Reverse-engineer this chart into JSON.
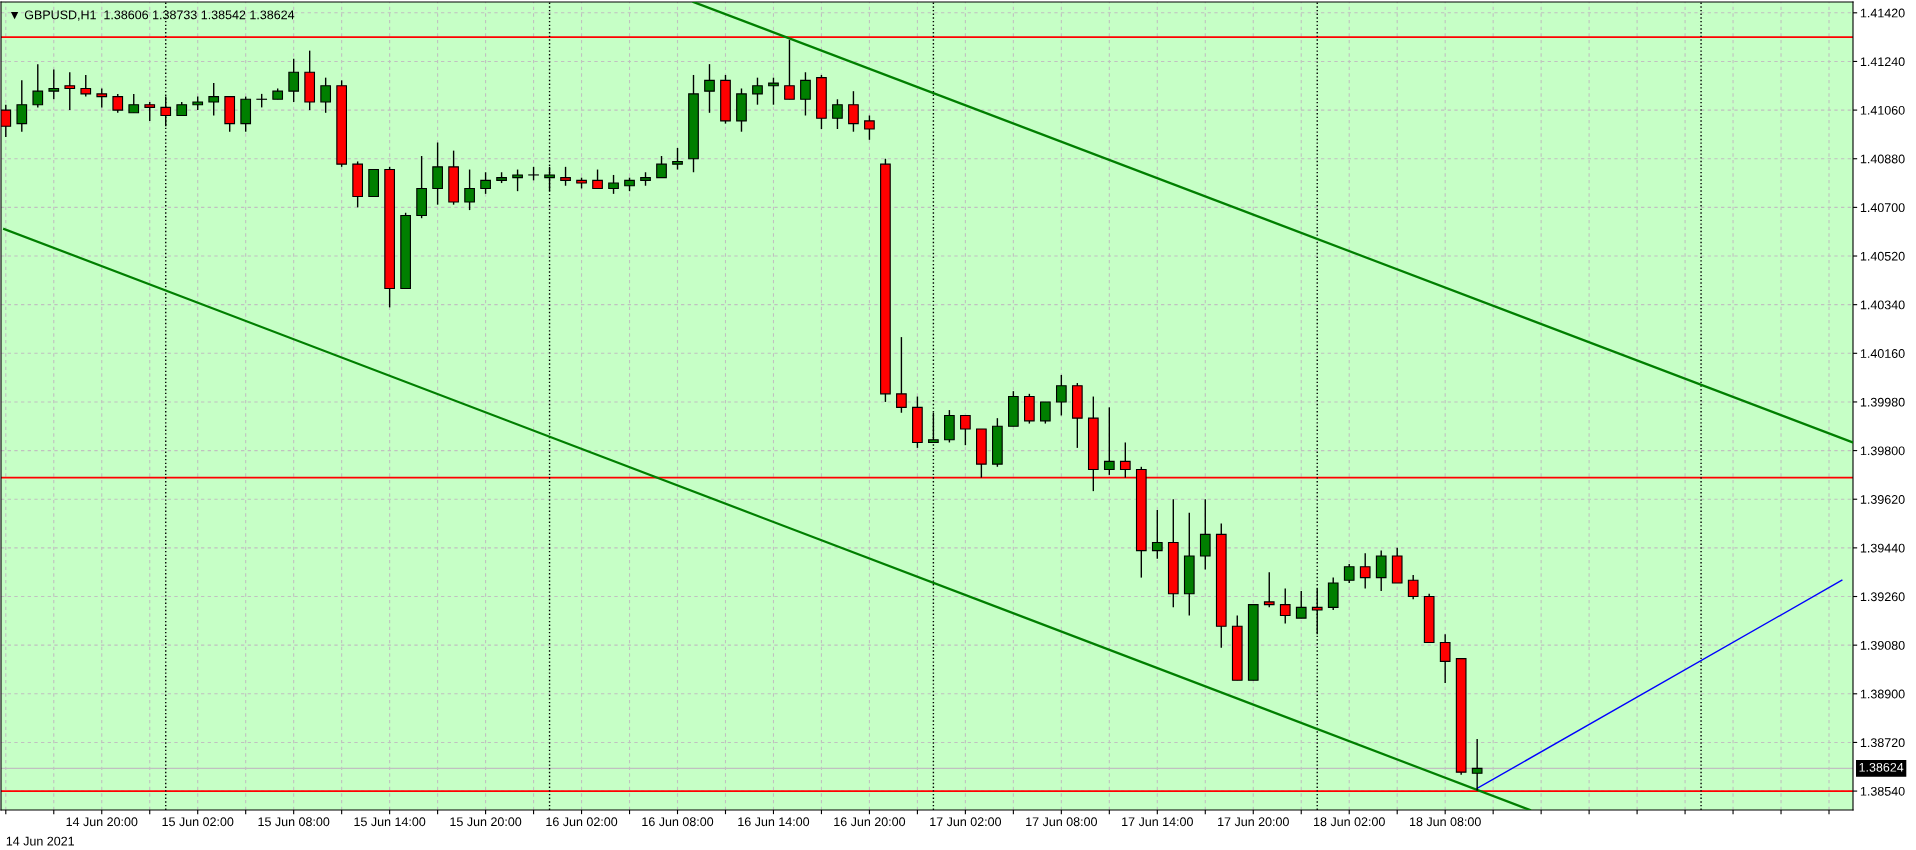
{
  "chart_data": {
    "type": "candlestick",
    "title": "▼ GBPUSD,H1  1.38606 1.38733 1.38542 1.38624",
    "x": [
      "2021-06-14T14:00",
      "2021-06-14T15:00",
      "2021-06-14T16:00",
      "2021-06-14T17:00",
      "2021-06-14T18:00",
      "2021-06-14T19:00",
      "2021-06-14T20:00",
      "2021-06-14T21:00",
      "2021-06-14T22:00",
      "2021-06-14T23:00",
      "2021-06-15T00:00",
      "2021-06-15T01:00",
      "2021-06-15T02:00",
      "2021-06-15T03:00",
      "2021-06-15T04:00",
      "2021-06-15T05:00",
      "2021-06-15T06:00",
      "2021-06-15T07:00",
      "2021-06-15T08:00",
      "2021-06-15T09:00",
      "2021-06-15T10:00",
      "2021-06-15T11:00",
      "2021-06-15T12:00",
      "2021-06-15T13:00",
      "2021-06-15T14:00",
      "2021-06-15T15:00",
      "2021-06-15T16:00",
      "2021-06-15T17:00",
      "2021-06-15T18:00",
      "2021-06-15T19:00",
      "2021-06-15T20:00",
      "2021-06-15T21:00",
      "2021-06-15T22:00",
      "2021-06-15T23:00",
      "2021-06-16T00:00",
      "2021-06-16T01:00",
      "2021-06-16T02:00",
      "2021-06-16T03:00",
      "2021-06-16T04:00",
      "2021-06-16T05:00",
      "2021-06-16T06:00",
      "2021-06-16T07:00",
      "2021-06-16T08:00",
      "2021-06-16T09:00",
      "2021-06-16T10:00",
      "2021-06-16T11:00",
      "2021-06-16T12:00",
      "2021-06-16T13:00",
      "2021-06-16T14:00",
      "2021-06-16T15:00",
      "2021-06-16T16:00",
      "2021-06-16T17:00",
      "2021-06-16T18:00",
      "2021-06-16T19:00",
      "2021-06-16T20:00",
      "2021-06-16T21:00",
      "2021-06-16T22:00",
      "2021-06-16T23:00",
      "2021-06-17T00:00",
      "2021-06-17T01:00",
      "2021-06-17T02:00",
      "2021-06-17T03:00",
      "2021-06-17T04:00",
      "2021-06-17T05:00",
      "2021-06-17T06:00",
      "2021-06-17T07:00",
      "2021-06-17T08:00",
      "2021-06-17T09:00",
      "2021-06-17T10:00",
      "2021-06-17T11:00",
      "2021-06-17T12:00",
      "2021-06-17T13:00",
      "2021-06-17T14:00",
      "2021-06-17T15:00",
      "2021-06-17T16:00",
      "2021-06-17T17:00",
      "2021-06-17T18:00",
      "2021-06-17T19:00",
      "2021-06-17T20:00",
      "2021-06-17T21:00",
      "2021-06-17T22:00",
      "2021-06-17T23:00",
      "2021-06-18T00:00",
      "2021-06-18T01:00",
      "2021-06-18T02:00",
      "2021-06-18T03:00",
      "2021-06-18T04:00",
      "2021-06-18T05:00",
      "2021-06-18T06:00",
      "2021-06-18T07:00",
      "2021-06-18T08:00",
      "2021-06-18T09:00",
      "2021-06-18T10:00"
    ],
    "ohlc": [
      [
        1.4106,
        1.4108,
        1.4096,
        1.41
      ],
      [
        1.4101,
        1.4117,
        1.4098,
        1.4108
      ],
      [
        1.4108,
        1.4123,
        1.4107,
        1.4113
      ],
      [
        1.4113,
        1.4121,
        1.411,
        1.4114
      ],
      [
        1.4115,
        1.412,
        1.4106,
        1.4114
      ],
      [
        1.4114,
        1.4119,
        1.4111,
        1.4112
      ],
      [
        1.4112,
        1.4114,
        1.4107,
        1.4111
      ],
      [
        1.4111,
        1.4112,
        1.4105,
        1.4106
      ],
      [
        1.4105,
        1.4112,
        1.4105,
        1.4108
      ],
      [
        1.4108,
        1.4109,
        1.4102,
        1.4107
      ],
      [
        1.4107,
        1.4111,
        1.41,
        1.4104
      ],
      [
        1.4104,
        1.4109,
        1.4104,
        1.4108
      ],
      [
        1.4108,
        1.4111,
        1.4106,
        1.4109
      ],
      [
        1.4109,
        1.4116,
        1.4104,
        1.4111
      ],
      [
        1.4111,
        1.4111,
        1.4098,
        1.4101
      ],
      [
        1.4101,
        1.4111,
        1.4098,
        1.411
      ],
      [
        1.411,
        1.4112,
        1.4107,
        1.411
      ],
      [
        1.411,
        1.4114,
        1.411,
        1.4113
      ],
      [
        1.4113,
        1.4125,
        1.4109,
        1.412
      ],
      [
        1.412,
        1.4128,
        1.4106,
        1.4109
      ],
      [
        1.4109,
        1.4118,
        1.4105,
        1.4115
      ],
      [
        1.4115,
        1.4117,
        1.4085,
        1.4086
      ],
      [
        1.4086,
        1.4087,
        1.407,
        1.4074
      ],
      [
        1.4074,
        1.4084,
        1.4074,
        1.4084
      ],
      [
        1.4084,
        1.4085,
        1.4033,
        1.404
      ],
      [
        1.404,
        1.4068,
        1.404,
        1.4067
      ],
      [
        1.4067,
        1.4089,
        1.4066,
        1.4077
      ],
      [
        1.4077,
        1.4094,
        1.4071,
        1.4085
      ],
      [
        1.4085,
        1.4091,
        1.4071,
        1.4072
      ],
      [
        1.4072,
        1.4084,
        1.4069,
        1.4077
      ],
      [
        1.4077,
        1.4083,
        1.4075,
        1.408
      ],
      [
        1.408,
        1.4083,
        1.4079,
        1.4081
      ],
      [
        1.4081,
        1.4084,
        1.4076,
        1.4082
      ],
      [
        1.4082,
        1.4085,
        1.408,
        1.4082
      ],
      [
        1.4081,
        1.4085,
        1.4076,
        1.4082
      ],
      [
        1.4081,
        1.4085,
        1.4078,
        1.408
      ],
      [
        1.408,
        1.4081,
        1.4077,
        1.4079
      ],
      [
        1.408,
        1.4084,
        1.4077,
        1.4077
      ],
      [
        1.4077,
        1.4082,
        1.4075,
        1.4079
      ],
      [
        1.4078,
        1.4081,
        1.4076,
        1.408
      ],
      [
        1.408,
        1.4083,
        1.4078,
        1.4081
      ],
      [
        1.4081,
        1.4089,
        1.4081,
        1.4086
      ],
      [
        1.4086,
        1.4092,
        1.4084,
        1.4087
      ],
      [
        1.4088,
        1.4119,
        1.4083,
        1.4112
      ],
      [
        1.4113,
        1.4123,
        1.4105,
        1.4117
      ],
      [
        1.4117,
        1.4119,
        1.4101,
        1.4102
      ],
      [
        1.4102,
        1.4114,
        1.4098,
        1.4112
      ],
      [
        1.4112,
        1.4118,
        1.4108,
        1.4115
      ],
      [
        1.4115,
        1.4118,
        1.4108,
        1.4116
      ],
      [
        1.4115,
        1.4132,
        1.411,
        1.411
      ],
      [
        1.411,
        1.412,
        1.4104,
        1.4117
      ],
      [
        1.4118,
        1.4119,
        1.4099,
        1.4103
      ],
      [
        1.4103,
        1.411,
        1.4099,
        1.4108
      ],
      [
        1.4108,
        1.4113,
        1.4098,
        1.4101
      ],
      [
        1.4102,
        1.4104,
        1.4095,
        1.4099
      ],
      [
        1.4086,
        1.4088,
        1.3998,
        1.4001
      ],
      [
        1.4001,
        1.4022,
        1.3994,
        1.3996
      ],
      [
        1.3996,
        1.4,
        1.3981,
        1.3983
      ],
      [
        1.3983,
        1.3994,
        1.3983,
        1.3984
      ],
      [
        1.3984,
        1.3995,
        1.3983,
        1.3993
      ],
      [
        1.3993,
        1.3993,
        1.3982,
        1.3988
      ],
      [
        1.3988,
        1.3988,
        1.397,
        1.3975
      ],
      [
        1.3975,
        1.3992,
        1.3974,
        1.3989
      ],
      [
        1.3989,
        1.4002,
        1.3989,
        1.4
      ],
      [
        1.4,
        1.4001,
        1.399,
        1.3991
      ],
      [
        1.3991,
        1.3998,
        1.399,
        1.3998
      ],
      [
        1.3998,
        1.4008,
        1.3993,
        1.4004
      ],
      [
        1.4004,
        1.4005,
        1.3981,
        1.3992
      ],
      [
        1.3992,
        1.4,
        1.3965,
        1.3973
      ],
      [
        1.3973,
        1.3996,
        1.3971,
        1.3976
      ],
      [
        1.3976,
        1.3983,
        1.397,
        1.3973
      ],
      [
        1.3973,
        1.3974,
        1.3933,
        1.3943
      ],
      [
        1.3943,
        1.3958,
        1.394,
        1.3946
      ],
      [
        1.3946,
        1.3962,
        1.3922,
        1.3927
      ],
      [
        1.3927,
        1.3957,
        1.3919,
        1.3941
      ],
      [
        1.3941,
        1.3962,
        1.3936,
        1.3949
      ],
      [
        1.3949,
        1.3953,
        1.3907,
        1.3915
      ],
      [
        1.3915,
        1.3919,
        1.3895,
        1.3895
      ],
      [
        1.3895,
        1.3923,
        1.3895,
        1.3923
      ],
      [
        1.3924,
        1.3935,
        1.3922,
        1.3923
      ],
      [
        1.3923,
        1.3929,
        1.3916,
        1.3919
      ],
      [
        1.3918,
        1.3928,
        1.3918,
        1.3922
      ],
      [
        1.3922,
        1.3929,
        1.3912,
        1.3921
      ],
      [
        1.3922,
        1.3933,
        1.3921,
        1.3931
      ],
      [
        1.3932,
        1.3938,
        1.3931,
        1.3937
      ],
      [
        1.3937,
        1.3942,
        1.3929,
        1.3933
      ],
      [
        1.3933,
        1.3943,
        1.3928,
        1.3941
      ],
      [
        1.3941,
        1.3944,
        1.3931,
        1.3931
      ],
      [
        1.3932,
        1.3934,
        1.3925,
        1.3926
      ],
      [
        1.3926,
        1.3927,
        1.3909,
        1.3909
      ],
      [
        1.3909,
        1.3912,
        1.3894,
        1.3902
      ],
      [
        1.3903,
        1.3903,
        1.386,
        1.3861
      ],
      [
        1.38606,
        1.38733,
        1.38542,
        1.38624
      ]
    ],
    "colors": [
      "#ff0000",
      "#007f00",
      "#007f00",
      "#007f00",
      "#ff0000",
      "#ff0000",
      "#ff0000",
      "#ff0000",
      "#007f00",
      "#ff0000",
      "#ff0000",
      "#007f00",
      "#007f00",
      "#007f00",
      "#ff0000",
      "#007f00",
      "#007f00",
      "#007f00",
      "#007f00",
      "#ff0000",
      "#007f00",
      "#ff0000",
      "#ff0000",
      "#007f00",
      "#ff0000",
      "#007f00",
      "#007f00",
      "#007f00",
      "#ff0000",
      "#007f00",
      "#007f00",
      "#007f00",
      "#007f00",
      "#007f00",
      "#007f00",
      "#ff0000",
      "#ff0000",
      "#ff0000",
      "#007f00",
      "#007f00",
      "#007f00",
      "#007f00",
      "#007f00",
      "#007f00",
      "#007f00",
      "#ff0000",
      "#007f00",
      "#007f00",
      "#007f00",
      "#ff0000",
      "#007f00",
      "#ff0000",
      "#007f00",
      "#ff0000",
      "#ff0000",
      "#ff0000",
      "#ff0000",
      "#ff0000",
      "#007f00",
      "#007f00",
      "#ff0000",
      "#ff0000",
      "#007f00",
      "#007f00",
      "#ff0000",
      "#007f00",
      "#007f00",
      "#ff0000",
      "#ff0000",
      "#007f00",
      "#ff0000",
      "#ff0000",
      "#007f00",
      "#ff0000",
      "#007f00",
      "#007f00",
      "#ff0000",
      "#ff0000",
      "#007f00",
      "#ff0000",
      "#ff0000",
      "#007f00",
      "#ff0000",
      "#007f00",
      "#007f00",
      "#ff0000",
      "#007f00",
      "#ff0000",
      "#ff0000",
      "#ff0000",
      "#ff0000",
      "#ff0000",
      "#007f00"
    ],
    "series": [
      {
        "type": "line",
        "x": [
          "2021-06-16T09:00",
          "2021-06-19T09:30"
        ],
        "values": [
          1.4146,
          1.3983
        ],
        "color": "#007f00"
      },
      {
        "type": "line",
        "x": [
          "2021-06-14T13:54",
          "2021-06-18T13:18"
        ],
        "values": [
          1.4062,
          1.3847
        ],
        "color": "#007f00"
      },
      {
        "type": "line",
        "x": [
          "2021-06-18T10:00",
          "2021-06-19T08:48"
        ],
        "values": [
          1.3855,
          1.3932
        ],
        "color": "#0000ff"
      }
    ],
    "ref_lines": [
      {
        "axis": "y",
        "value": 1.4133,
        "label": null,
        "color": "#ff0000"
      },
      {
        "axis": "y",
        "value": 1.397,
        "label": null,
        "color": "#ff0000"
      },
      {
        "axis": "y",
        "value": 1.3854,
        "label": null,
        "color": "#ff0000"
      },
      {
        "axis": "y",
        "value": 1.38624,
        "label": "1.38624",
        "color": "#c0c0c0"
      },
      {
        "axis": "x",
        "value": "2021-06-15T00:00",
        "label": null,
        "color": "#000000",
        "line_style": "dotted"
      },
      {
        "axis": "x",
        "value": "2021-06-16T00:00",
        "label": null,
        "color": "#000000",
        "line_style": "dotted"
      },
      {
        "axis": "x",
        "value": "2021-06-17T00:00",
        "label": null,
        "color": "#000000",
        "line_style": "dotted"
      },
      {
        "axis": "x",
        "value": "2021-06-18T00:00",
        "label": null,
        "color": "#000000",
        "line_style": "dotted"
      },
      {
        "axis": "x",
        "value": "2021-06-19T00:00",
        "label": null,
        "color": "#000000",
        "line_style": "dotted"
      }
    ],
    "xlim": [
      "2021-06-14T13:42",
      "2021-06-19T09:30"
    ],
    "annotations": [
      "14 Jun 2021"
    ],
    "xticks": [
      {
        "value": "2021-06-14T14:00",
        "label": null
      },
      {
        "value": "2021-06-14T17:00",
        "label": null
      },
      {
        "value": "2021-06-14T20:00",
        "label": "14 Jun 20:00"
      },
      {
        "value": "2021-06-14T23:00",
        "label": null
      },
      {
        "value": "2021-06-15T02:00",
        "label": "15 Jun 02:00"
      },
      {
        "value": "2021-06-15T05:00",
        "label": null
      },
      {
        "value": "2021-06-15T08:00",
        "label": "15 Jun 08:00"
      },
      {
        "value": "2021-06-15T11:00",
        "label": null
      },
      {
        "value": "2021-06-15T14:00",
        "label": "15 Jun 14:00"
      },
      {
        "value": "2021-06-15T17:00",
        "label": null
      },
      {
        "value": "2021-06-15T20:00",
        "label": "15 Jun 20:00"
      },
      {
        "value": "2021-06-15T23:00",
        "label": null
      },
      {
        "value": "2021-06-16T02:00",
        "label": "16 Jun 02:00"
      },
      {
        "value": "2021-06-16T05:00",
        "label": null
      },
      {
        "value": "2021-06-16T08:00",
        "label": "16 Jun 08:00"
      },
      {
        "value": "2021-06-16T11:00",
        "label": null
      },
      {
        "value": "2021-06-16T14:00",
        "label": "16 Jun 14:00"
      },
      {
        "value": "2021-06-16T17:00",
        "label": null
      },
      {
        "value": "2021-06-16T20:00",
        "label": "16 Jun 20:00"
      },
      {
        "value": "2021-06-16T23:00",
        "label": null
      },
      {
        "value": "2021-06-17T02:00",
        "label": "17 Jun 02:00"
      },
      {
        "value": "2021-06-17T05:00",
        "label": null
      },
      {
        "value": "2021-06-17T08:00",
        "label": "17 Jun 08:00"
      },
      {
        "value": "2021-06-17T11:00",
        "label": null
      },
      {
        "value": "2021-06-17T14:00",
        "label": "17 Jun 14:00"
      },
      {
        "value": "2021-06-17T17:00",
        "label": null
      },
      {
        "value": "2021-06-17T20:00",
        "label": "17 Jun 20:00"
      },
      {
        "value": "2021-06-17T23:00",
        "label": null
      },
      {
        "value": "2021-06-18T02:00",
        "label": "18 Jun 02:00"
      },
      {
        "value": "2021-06-18T05:00",
        "label": null
      },
      {
        "value": "2021-06-18T08:00",
        "label": "18 Jun 08:00"
      },
      {
        "value": "2021-06-18T11:00",
        "label": null
      },
      {
        "value": "2021-06-18T14:00",
        "label": null
      },
      {
        "value": "2021-06-18T17:00",
        "label": null
      },
      {
        "value": "2021-06-18T20:00",
        "label": null
      },
      {
        "value": "2021-06-18T23:00",
        "label": null
      },
      {
        "value": "2021-06-19T02:00",
        "label": null
      },
      {
        "value": "2021-06-19T05:00",
        "label": null
      },
      {
        "value": "2021-06-19T08:00",
        "label": null
      }
    ],
    "ylim": [
      1.3847,
      1.4146
    ],
    "yticks": [
      {
        "value": 1.3854,
        "label": "1.38540"
      },
      {
        "value": 1.3872,
        "label": "1.38720"
      },
      {
        "value": 1.389,
        "label": "1.38900"
      },
      {
        "value": 1.3908,
        "label": "1.39080"
      },
      {
        "value": 1.3926,
        "label": "1.39260"
      },
      {
        "value": 1.3944,
        "label": "1.39440"
      },
      {
        "value": 1.3962,
        "label": "1.39620"
      },
      {
        "value": 1.398,
        "label": "1.39800"
      },
      {
        "value": 1.3998,
        "label": "1.39980"
      },
      {
        "value": 1.4016,
        "label": "1.40160"
      },
      {
        "value": 1.4034,
        "label": "1.40340"
      },
      {
        "value": 1.4052,
        "label": "1.40520"
      },
      {
        "value": 1.407,
        "label": "1.40700"
      },
      {
        "value": 1.4088,
        "label": "1.40880"
      },
      {
        "value": 1.4106,
        "label": "1.41060"
      },
      {
        "value": 1.4124,
        "label": "1.41240"
      },
      {
        "value": 1.4142,
        "label": "1.41420"
      }
    ],
    "grid": true
  }
}
